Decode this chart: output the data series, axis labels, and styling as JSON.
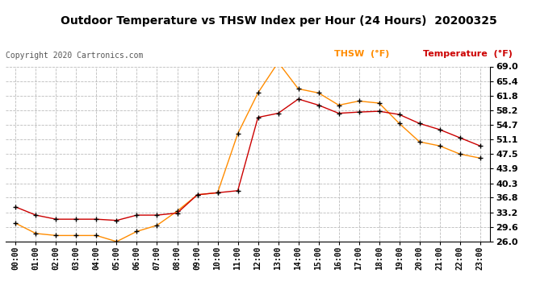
{
  "title": "Outdoor Temperature vs THSW Index per Hour (24 Hours)  20200325",
  "copyright": "Copyright 2020 Cartronics.com",
  "hours": [
    "00:00",
    "01:00",
    "02:00",
    "03:00",
    "04:00",
    "05:00",
    "06:00",
    "07:00",
    "08:00",
    "09:00",
    "10:00",
    "11:00",
    "12:00",
    "13:00",
    "14:00",
    "15:00",
    "16:00",
    "17:00",
    "18:00",
    "19:00",
    "20:00",
    "21:00",
    "22:00",
    "23:00"
  ],
  "temperature": [
    34.5,
    32.5,
    31.5,
    31.5,
    31.5,
    31.2,
    32.5,
    32.5,
    33.0,
    37.5,
    38.0,
    38.5,
    56.5,
    57.5,
    61.0,
    59.5,
    57.5,
    57.8,
    58.0,
    57.2,
    55.0,
    53.5,
    51.5,
    49.5
  ],
  "thsw": [
    30.5,
    28.0,
    27.5,
    27.5,
    27.5,
    26.0,
    28.5,
    30.0,
    33.5,
    37.5,
    38.0,
    52.5,
    62.5,
    70.0,
    63.5,
    62.5,
    59.5,
    60.5,
    60.0,
    55.0,
    50.5,
    49.5,
    47.5,
    46.5
  ],
  "temp_color": "#cc0000",
  "thsw_color": "#ff8c00",
  "marker_color": "#000000",
  "bg_color": "#ffffff",
  "grid_color": "#bbbbbb",
  "ylim_min": 26.0,
  "ylim_max": 69.0,
  "yticks": [
    26.0,
    29.6,
    33.2,
    36.8,
    40.3,
    43.9,
    47.5,
    51.1,
    54.7,
    58.2,
    61.8,
    65.4,
    69.0
  ],
  "legend_thsw": "THSW  (°F)",
  "legend_temp": "Temperature  (°F)"
}
